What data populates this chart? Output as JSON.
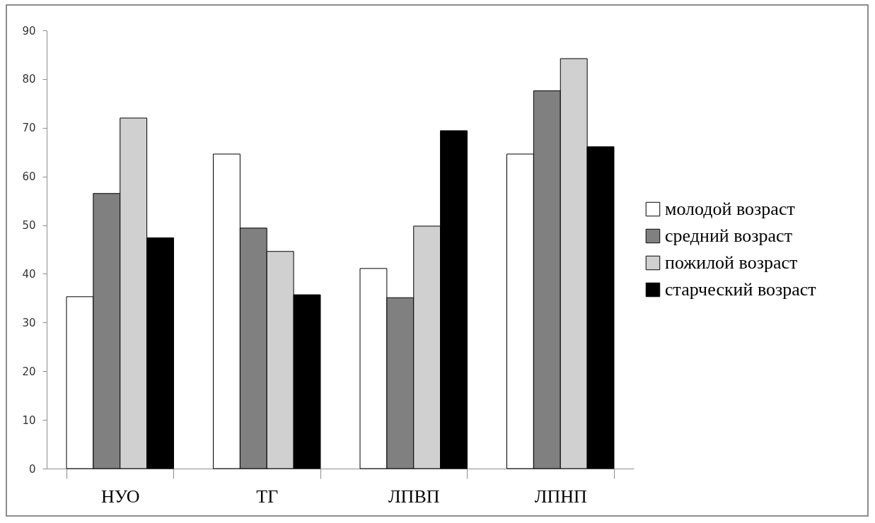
{
  "chart_data": {
    "type": "bar",
    "categories": [
      "НУО",
      "ТГ",
      "ЛПВП",
      "ЛПНП"
    ],
    "series": [
      {
        "name": "молодой возраст",
        "color": "#ffffff",
        "values": [
          35.3,
          64.6,
          41.1,
          64.6
        ]
      },
      {
        "name": "средний возраст",
        "color": "#808080",
        "values": [
          56.5,
          49.4,
          35.1,
          77.6
        ]
      },
      {
        "name": "пожилой возраст",
        "color": "#d0d0d0",
        "values": [
          72,
          44.6,
          49.8,
          84.2
        ]
      },
      {
        "name": "старческий возраст",
        "color": "#000000",
        "values": [
          47.4,
          35.7,
          69.4,
          66.1
        ]
      }
    ],
    "ylim": [
      0,
      90
    ],
    "yticks": [
      0,
      10,
      20,
      30,
      40,
      50,
      60,
      70,
      80,
      90
    ],
    "grid": false,
    "legend": "right"
  }
}
